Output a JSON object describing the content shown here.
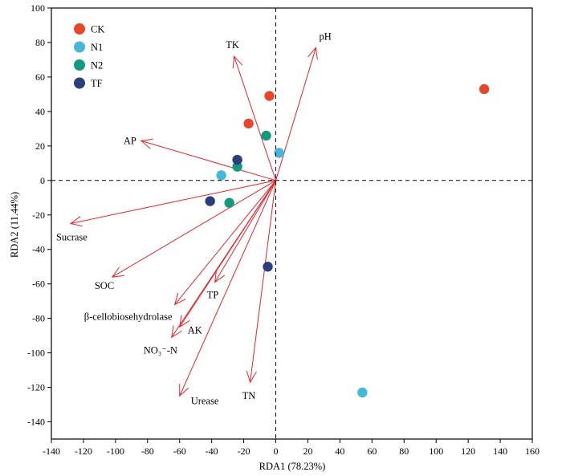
{
  "chart_data": {
    "type": "scatter",
    "title": "",
    "xlabel": "RDA1 (78.23%)",
    "ylabel": "RDA2 (11.44%)",
    "xlim": [
      -140,
      160
    ],
    "ylim": [
      -150,
      100
    ],
    "xticks": [
      -140,
      -120,
      -100,
      -80,
      -60,
      -40,
      -20,
      0,
      20,
      40,
      60,
      80,
      100,
      120,
      140,
      160
    ],
    "yticks": [
      -140,
      -120,
      -100,
      -80,
      -60,
      -40,
      -20,
      0,
      20,
      40,
      60,
      80,
      100
    ],
    "grid": false,
    "reference_lines": [
      "x=0 dashed",
      "y=0 dashed"
    ],
    "legend_position": "top-left",
    "series": [
      {
        "name": "CK",
        "color": "#e8462a",
        "points": [
          [
            -4,
            49
          ],
          [
            -17,
            33
          ],
          [
            130,
            53
          ]
        ]
      },
      {
        "name": "N1",
        "color": "#45b8d9",
        "points": [
          [
            2,
            16
          ],
          [
            -34,
            3
          ],
          [
            54,
            -123
          ]
        ]
      },
      {
        "name": "N2",
        "color": "#139a7e",
        "points": [
          [
            -6,
            26
          ],
          [
            -24,
            8
          ],
          [
            -29,
            -13
          ]
        ]
      },
      {
        "name": "TF",
        "color": "#2b3f7c",
        "points": [
          [
            -24,
            12
          ],
          [
            -41,
            -12
          ],
          [
            -5,
            -50
          ]
        ]
      }
    ],
    "vectors": [
      {
        "name": "pH",
        "x": 25,
        "y": 77
      },
      {
        "name": "TK",
        "x": -26,
        "y": 72
      },
      {
        "name": "AP",
        "x": -84,
        "y": 23
      },
      {
        "name": "Sucrase",
        "x": -128,
        "y": -25
      },
      {
        "name": "SOC",
        "x": -102,
        "y": -56
      },
      {
        "name": "TP",
        "x": -38,
        "y": -59
      },
      {
        "name": "β-cellobiosehydrolase",
        "x": -63,
        "y": -72
      },
      {
        "name": "AK",
        "x": -60,
        "y": -85
      },
      {
        "name": "NO₃⁻-N",
        "x": -65,
        "y": -91
      },
      {
        "name": "Urease",
        "x": -60,
        "y": -125
      },
      {
        "name": "TN",
        "x": -16,
        "y": -117
      }
    ],
    "vector_color": "#e8232a"
  }
}
